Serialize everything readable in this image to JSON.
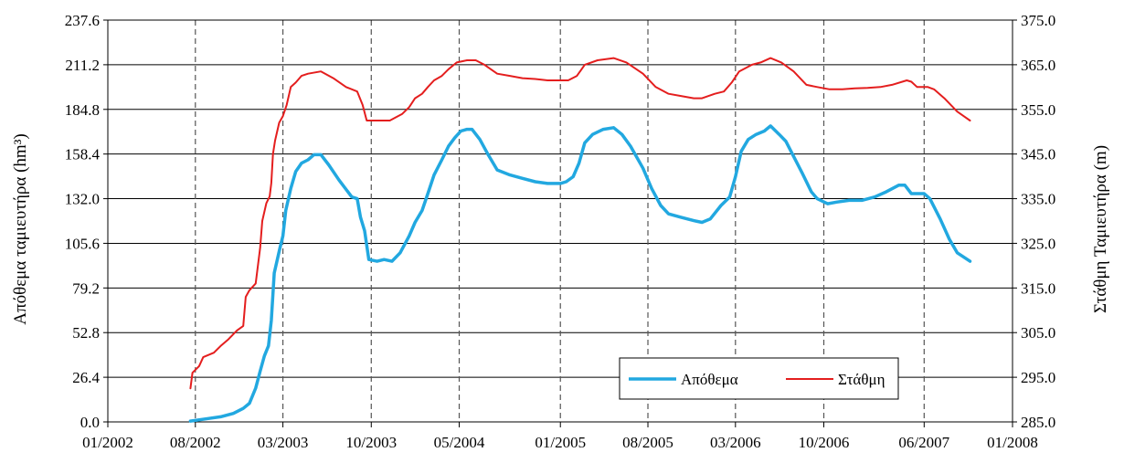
{
  "chart_data": {
    "type": "line",
    "title": "",
    "x_axis": {
      "type": "date",
      "range": [
        "2002-01-01",
        "2008-01-01"
      ],
      "tick_labels": [
        "01/2002",
        "08/2002",
        "03/2003",
        "10/2003",
        "05/2004",
        "01/2005",
        "08/2005",
        "03/2006",
        "10/2006",
        "06/2007",
        "01/2008"
      ],
      "tick_dates": [
        "2002-01-01",
        "2002-08-01",
        "2003-03-01",
        "2003-10-01",
        "2004-05-01",
        "2005-01-01",
        "2005-08-01",
        "2006-03-01",
        "2006-10-01",
        "2007-06-01",
        "2008-01-01"
      ]
    },
    "y_left": {
      "label": "Απόθεμα ταμιευτήρα (hm³)",
      "range": [
        0,
        237.6
      ],
      "tick_labels": [
        "0.0",
        "26.4",
        "52.8",
        "79.2",
        "105.6",
        "132.0",
        "158.4",
        "184.8",
        "211.2",
        "237.6"
      ]
    },
    "y_right": {
      "label": "Στάθμη Ταμιευτήρα (m)",
      "range": [
        285.0,
        375.0
      ],
      "tick_labels": [
        "285.0",
        "295.0",
        "305.0",
        "315.0",
        "325.0",
        "335.0",
        "345.0",
        "355.0",
        "365.0",
        "375.0"
      ]
    },
    "grid": {
      "horizontal": true,
      "vertical_dashed_at_ticks": true
    },
    "legend": {
      "position": "bottom-right"
    },
    "series": [
      {
        "name": "Απόθεμα",
        "axis": "left",
        "color": "#22a8e0",
        "points": [
          [
            "2002-07-20",
            0.5
          ],
          [
            "2002-09-01",
            2
          ],
          [
            "2002-10-01",
            3
          ],
          [
            "2002-11-01",
            5
          ],
          [
            "2002-11-25",
            8
          ],
          [
            "2002-12-10",
            11
          ],
          [
            "2002-12-25",
            20
          ],
          [
            "2003-01-05",
            30
          ],
          [
            "2003-01-15",
            39
          ],
          [
            "2003-01-25",
            45
          ],
          [
            "2003-02-01",
            60
          ],
          [
            "2003-02-08",
            88
          ],
          [
            "2003-02-22",
            103
          ],
          [
            "2003-03-01",
            110
          ],
          [
            "2003-03-08",
            125
          ],
          [
            "2003-03-20",
            138
          ],
          [
            "2003-04-01",
            148
          ],
          [
            "2003-04-15",
            153
          ],
          [
            "2003-05-01",
            155
          ],
          [
            "2003-05-15",
            158
          ],
          [
            "2003-06-01",
            158
          ],
          [
            "2003-06-20",
            152
          ],
          [
            "2003-07-15",
            143
          ],
          [
            "2003-08-15",
            133
          ],
          [
            "2003-08-28",
            132
          ],
          [
            "2003-09-05",
            121
          ],
          [
            "2003-09-15",
            113
          ],
          [
            "2003-09-25",
            96
          ],
          [
            "2003-10-15",
            95
          ],
          [
            "2003-11-01",
            96
          ],
          [
            "2003-11-20",
            95
          ],
          [
            "2003-12-10",
            100
          ],
          [
            "2004-01-01",
            110
          ],
          [
            "2004-01-15",
            118
          ],
          [
            "2004-02-01",
            125
          ],
          [
            "2004-02-15",
            135
          ],
          [
            "2004-03-01",
            146
          ],
          [
            "2004-03-20",
            155
          ],
          [
            "2004-04-05",
            163
          ],
          [
            "2004-04-20",
            168
          ],
          [
            "2004-05-05",
            172
          ],
          [
            "2004-05-20",
            173
          ],
          [
            "2004-06-01",
            173
          ],
          [
            "2004-06-20",
            167
          ],
          [
            "2004-07-10",
            158
          ],
          [
            "2004-08-01",
            149
          ],
          [
            "2004-09-01",
            146
          ],
          [
            "2004-10-01",
            144
          ],
          [
            "2004-11-01",
            142
          ],
          [
            "2004-12-01",
            141
          ],
          [
            "2005-01-01",
            141
          ],
          [
            "2005-01-15",
            142
          ],
          [
            "2005-02-01",
            145
          ],
          [
            "2005-02-15",
            153
          ],
          [
            "2005-03-01",
            165
          ],
          [
            "2005-03-20",
            170
          ],
          [
            "2005-04-15",
            173
          ],
          [
            "2005-05-10",
            174
          ],
          [
            "2005-05-30",
            170
          ],
          [
            "2005-06-20",
            163
          ],
          [
            "2005-07-20",
            150
          ],
          [
            "2005-08-10",
            138
          ],
          [
            "2005-09-01",
            128
          ],
          [
            "2005-09-20",
            123
          ],
          [
            "2005-10-20",
            121
          ],
          [
            "2005-11-20",
            119
          ],
          [
            "2005-12-10",
            118
          ],
          [
            "2005-12-30",
            120
          ],
          [
            "2006-01-25",
            128
          ],
          [
            "2006-02-15",
            133
          ],
          [
            "2006-03-01",
            145
          ],
          [
            "2006-03-15",
            160
          ],
          [
            "2006-04-01",
            167
          ],
          [
            "2006-04-20",
            170
          ],
          [
            "2006-05-10",
            172
          ],
          [
            "2006-05-25",
            175
          ],
          [
            "2006-06-15",
            170
          ],
          [
            "2006-07-01",
            166
          ],
          [
            "2006-07-20",
            157
          ],
          [
            "2006-08-10",
            147
          ],
          [
            "2006-09-01",
            136
          ],
          [
            "2006-09-15",
            132
          ],
          [
            "2006-10-10",
            129
          ],
          [
            "2006-11-01",
            130
          ],
          [
            "2006-12-01",
            131
          ],
          [
            "2007-01-01",
            131
          ],
          [
            "2007-02-01",
            133
          ],
          [
            "2007-03-01",
            136
          ],
          [
            "2007-04-01",
            140
          ],
          [
            "2007-04-15",
            140
          ],
          [
            "2007-05-01",
            135
          ],
          [
            "2007-06-01",
            135
          ],
          [
            "2007-06-15",
            132
          ],
          [
            "2007-07-10",
            120
          ],
          [
            "2007-08-01",
            108
          ],
          [
            "2007-08-20",
            100
          ],
          [
            "2007-09-20",
            95
          ]
        ]
      },
      {
        "name": "Στάθμη",
        "axis": "right",
        "color": "#e41e1e",
        "points": [
          [
            "2002-07-20",
            292.5
          ],
          [
            "2002-07-25",
            296.0
          ],
          [
            "2002-08-10",
            297.5
          ],
          [
            "2002-08-20",
            299.5
          ],
          [
            "2002-09-15",
            300.5
          ],
          [
            "2002-10-01",
            302.0
          ],
          [
            "2002-10-20",
            303.5
          ],
          [
            "2002-11-10",
            305.5
          ],
          [
            "2002-11-25",
            306.5
          ],
          [
            "2002-12-01",
            313.0
          ],
          [
            "2002-12-10",
            314.5
          ],
          [
            "2002-12-25",
            316.0
          ],
          [
            "2003-01-05",
            324.0
          ],
          [
            "2003-01-10",
            330.0
          ],
          [
            "2003-01-20",
            334.0
          ],
          [
            "2003-01-28",
            335.5
          ],
          [
            "2003-02-01",
            338.5
          ],
          [
            "2003-02-05",
            345.0
          ],
          [
            "2003-02-10",
            348.0
          ],
          [
            "2003-02-20",
            352.0
          ],
          [
            "2003-03-01",
            353.5
          ],
          [
            "2003-03-10",
            356.0
          ],
          [
            "2003-03-20",
            360.0
          ],
          [
            "2003-04-01",
            361.0
          ],
          [
            "2003-04-15",
            362.5
          ],
          [
            "2003-05-01",
            363.0
          ],
          [
            "2003-06-01",
            363.5
          ],
          [
            "2003-07-01",
            362.0
          ],
          [
            "2003-08-01",
            360.0
          ],
          [
            "2003-08-28",
            359.0
          ],
          [
            "2003-09-10",
            356.0
          ],
          [
            "2003-09-20",
            352.5
          ],
          [
            "2003-10-15",
            352.5
          ],
          [
            "2003-11-15",
            352.5
          ],
          [
            "2003-12-15",
            354.0
          ],
          [
            "2004-01-01",
            355.5
          ],
          [
            "2004-01-15",
            357.5
          ],
          [
            "2004-02-01",
            358.5
          ],
          [
            "2004-02-15",
            360.0
          ],
          [
            "2004-03-01",
            361.5
          ],
          [
            "2004-03-20",
            362.5
          ],
          [
            "2004-04-05",
            364.0
          ],
          [
            "2004-04-25",
            365.5
          ],
          [
            "2004-05-20",
            366.0
          ],
          [
            "2004-06-10",
            366.0
          ],
          [
            "2004-07-01",
            365.0
          ],
          [
            "2004-08-01",
            363.0
          ],
          [
            "2004-09-01",
            362.5
          ],
          [
            "2004-10-01",
            362.0
          ],
          [
            "2004-11-01",
            361.8
          ],
          [
            "2004-12-01",
            361.5
          ],
          [
            "2005-01-01",
            361.5
          ],
          [
            "2005-01-20",
            361.5
          ],
          [
            "2005-02-10",
            362.5
          ],
          [
            "2005-03-01",
            365.0
          ],
          [
            "2005-04-01",
            366.0
          ],
          [
            "2005-05-10",
            366.5
          ],
          [
            "2005-06-10",
            365.5
          ],
          [
            "2005-07-20",
            363.0
          ],
          [
            "2005-08-20",
            360.0
          ],
          [
            "2005-09-20",
            358.5
          ],
          [
            "2005-10-20",
            358.0
          ],
          [
            "2005-11-20",
            357.5
          ],
          [
            "2005-12-10",
            357.5
          ],
          [
            "2006-01-10",
            358.5
          ],
          [
            "2006-02-01",
            359.0
          ],
          [
            "2006-02-20",
            361.0
          ],
          [
            "2006-03-10",
            363.5
          ],
          [
            "2006-04-10",
            365.0
          ],
          [
            "2006-05-01",
            365.5
          ],
          [
            "2006-05-25",
            366.5
          ],
          [
            "2006-06-20",
            365.5
          ],
          [
            "2006-07-20",
            363.5
          ],
          [
            "2006-08-20",
            360.5
          ],
          [
            "2006-09-15",
            360.0
          ],
          [
            "2006-10-15",
            359.5
          ],
          [
            "2006-11-15",
            359.5
          ],
          [
            "2006-12-15",
            359.7
          ],
          [
            "2007-01-15",
            359.8
          ],
          [
            "2007-02-15",
            360.0
          ],
          [
            "2007-03-15",
            360.5
          ],
          [
            "2007-04-20",
            361.5
          ],
          [
            "2007-05-01",
            361.2
          ],
          [
            "2007-05-15",
            360.0
          ],
          [
            "2007-06-10",
            360.0
          ],
          [
            "2007-06-25",
            359.5
          ],
          [
            "2007-07-20",
            357.5
          ],
          [
            "2007-08-20",
            354.5
          ],
          [
            "2007-09-20",
            352.5
          ]
        ]
      }
    ]
  }
}
